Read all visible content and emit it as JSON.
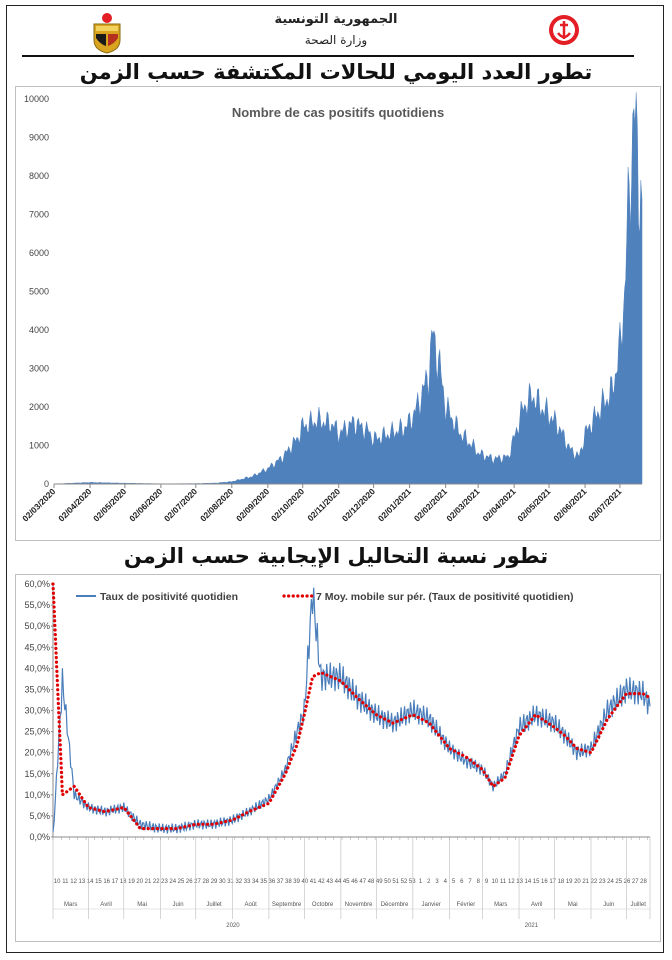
{
  "header": {
    "republic": "الجمهورية التونسية",
    "ministry": "وزارة الصحة",
    "colors": {
      "rule": "#111111",
      "accent_red": "#e31e24",
      "emblem_gold": "#d9a520"
    },
    "icons": [
      "tunisia-coat-of-arms-icon",
      "ministry-of-health-logo-icon"
    ]
  },
  "section1": {
    "title": "تطور العدد اليومي للحالات المكتشفة حسب الزمن"
  },
  "section2": {
    "title": "تطور نسبة التحاليل الإيجابية حسب الزمن"
  },
  "chart_data": [
    {
      "type": "area",
      "title": "Nombre de cas positifs quotidiens",
      "xlabel": "",
      "ylabel": "",
      "ylim": [
        0,
        10000
      ],
      "yticks": [
        "0",
        "1000",
        "2000",
        "3000",
        "4000",
        "5000",
        "6000",
        "7000",
        "8000",
        "9000",
        "10000"
      ],
      "x_tick_labels": [
        "02/03/2020",
        "02/04/2020",
        "02/05/2020",
        "02/06/2020",
        "02/07/2020",
        "02/08/2020",
        "02/09/2020",
        "02/10/2020",
        "02/11/2020",
        "02/12/2020",
        "02/01/2021",
        "02/02/2021",
        "02/03/2021",
        "02/04/2021",
        "02/05/2021",
        "02/06/2021",
        "02/07/2021"
      ],
      "grid": false,
      "color": "#4f81bd",
      "series": [
        {
          "x": [
            "2020-03-02",
            "2020-04-02",
            "2020-05-02",
            "2020-06-02",
            "2020-07-02",
            "2020-07-20",
            "2020-08-02",
            "2020-08-20",
            "2020-09-02",
            "2020-09-15",
            "2020-09-28",
            "2020-10-02",
            "2020-10-15",
            "2020-10-28",
            "2020-11-02",
            "2020-11-15",
            "2020-11-28",
            "2020-12-02",
            "2020-12-15",
            "2020-12-28",
            "2021-01-02",
            "2021-01-10",
            "2021-01-18",
            "2021-01-22",
            "2021-01-28",
            "2021-02-02",
            "2021-02-15",
            "2021-02-28",
            "2021-03-02",
            "2021-03-15",
            "2021-03-28",
            "2021-04-02",
            "2021-04-10",
            "2021-04-18",
            "2021-04-25",
            "2021-05-02",
            "2021-05-10",
            "2021-05-20",
            "2021-05-28",
            "2021-06-02",
            "2021-06-10",
            "2021-06-18",
            "2021-06-25",
            "2021-07-02",
            "2021-07-06",
            "2021-07-10",
            "2021-07-14",
            "2021-07-18",
            "2021-07-21"
          ],
          "y": [
            0,
            40,
            20,
            5,
            10,
            25,
            60,
            200,
            400,
            700,
            1200,
            1500,
            1650,
            1550,
            1300,
            1600,
            1350,
            1150,
            1300,
            1450,
            1600,
            2100,
            2800,
            3900,
            3000,
            2000,
            1300,
            900,
            800,
            650,
            700,
            1200,
            2000,
            2300,
            2000,
            1800,
            1500,
            900,
            700,
            1300,
            1700,
            2100,
            2400,
            3500,
            5000,
            7500,
            9700,
            8000,
            7400
          ]
        }
      ]
    },
    {
      "type": "line",
      "title": "",
      "xlabel": "",
      "ylabel": "",
      "ylim": [
        0,
        60
      ],
      "yticks": [
        "0,0%",
        "5,0%",
        "10,0%",
        "15,0%",
        "20,0%",
        "25,0%",
        "30,0%",
        "35,0%",
        "40,0%",
        "45,0%",
        "50,0%",
        "55,0%",
        "60,0%"
      ],
      "grid": false,
      "legend": "top-center",
      "months": [
        "Mars",
        "Avril",
        "Mai",
        "Juin",
        "Juillet",
        "Août",
        "Septembre",
        "Octobre",
        "Novembre",
        "Décembre",
        "Janvier",
        "Février",
        "Mars",
        "Avril",
        "Mai",
        "Juin",
        "Juillet"
      ],
      "years": [
        "2020",
        "2021"
      ],
      "week_numbers": [
        "10",
        "11",
        "12",
        "13",
        "14",
        "15",
        "16",
        "17",
        "18",
        "19",
        "20",
        "21",
        "22",
        "23",
        "24",
        "25",
        "26",
        "27",
        "28",
        "29",
        "30",
        "31",
        "32",
        "33",
        "34",
        "35",
        "36",
        "37",
        "38",
        "39",
        "40",
        "41",
        "42",
        "43",
        "44",
        "45",
        "46",
        "47",
        "48",
        "49",
        "50",
        "51",
        "52",
        "53",
        "1",
        "2",
        "3",
        "4",
        "5",
        "6",
        "7",
        "8",
        "9",
        "10",
        "11",
        "12",
        "13",
        "14",
        "15",
        "16",
        "17",
        "18",
        "19",
        "20",
        "21",
        "22",
        "23",
        "24",
        "25",
        "26",
        "27",
        "28"
      ],
      "series": [
        {
          "name": "Taux de positivité quotidien",
          "color": "#4a7ebb",
          "style": "solid",
          "x": [
            "2020-03-02",
            "2020-03-10",
            "2020-03-20",
            "2020-04-01",
            "2020-04-15",
            "2020-05-01",
            "2020-05-15",
            "2020-06-01",
            "2020-06-15",
            "2020-07-01",
            "2020-07-15",
            "2020-08-01",
            "2020-08-15",
            "2020-09-01",
            "2020-09-15",
            "2020-09-25",
            "2020-10-01",
            "2020-10-08",
            "2020-10-15",
            "2020-11-01",
            "2020-11-15",
            "2020-12-01",
            "2020-12-15",
            "2021-01-01",
            "2021-01-15",
            "2021-02-01",
            "2021-02-15",
            "2021-03-01",
            "2021-03-10",
            "2021-03-20",
            "2021-04-01",
            "2021-04-15",
            "2021-05-01",
            "2021-05-10",
            "2021-05-20",
            "2021-06-01",
            "2021-06-15",
            "2021-07-01",
            "2021-07-15",
            "2021-07-21"
          ],
          "y": [
            0,
            37,
            10,
            7,
            6,
            7,
            3,
            2,
            2,
            3,
            3,
            4,
            6,
            9,
            16,
            25,
            30,
            58,
            38,
            38,
            33,
            29,
            27,
            30,
            28,
            21,
            18,
            16,
            12,
            15,
            26,
            29,
            27,
            24,
            20,
            21,
            30,
            35,
            34,
            31
          ]
        },
        {
          "name": "7 Moy. mobile sur pér. (Taux de positivité quotidien)",
          "color": "#e00000",
          "style": "dotted",
          "x": [
            "2020-03-02",
            "2020-03-10",
            "2020-03-20",
            "2020-04-01",
            "2020-04-15",
            "2020-05-01",
            "2020-05-15",
            "2020-06-01",
            "2020-06-15",
            "2020-07-01",
            "2020-07-15",
            "2020-08-01",
            "2020-08-15",
            "2020-09-01",
            "2020-09-15",
            "2020-09-25",
            "2020-10-01",
            "2020-10-08",
            "2020-10-15",
            "2020-11-01",
            "2020-11-15",
            "2020-12-01",
            "2020-12-15",
            "2021-01-01",
            "2021-01-15",
            "2021-02-01",
            "2021-02-15",
            "2021-03-01",
            "2021-03-10",
            "2021-03-20",
            "2021-04-01",
            "2021-04-15",
            "2021-05-01",
            "2021-05-10",
            "2021-05-20",
            "2021-06-01",
            "2021-06-15",
            "2021-07-01",
            "2021-07-15",
            "2021-07-21"
          ],
          "y": [
            60,
            10,
            12,
            7,
            6,
            7,
            2,
            2,
            2,
            3,
            3,
            4,
            6,
            8,
            15,
            22,
            29,
            38,
            39,
            37,
            33,
            29,
            27,
            29,
            27,
            21,
            19,
            16,
            12,
            14,
            24,
            29,
            26,
            24,
            21,
            20,
            28,
            34,
            34,
            33
          ]
        }
      ]
    }
  ]
}
